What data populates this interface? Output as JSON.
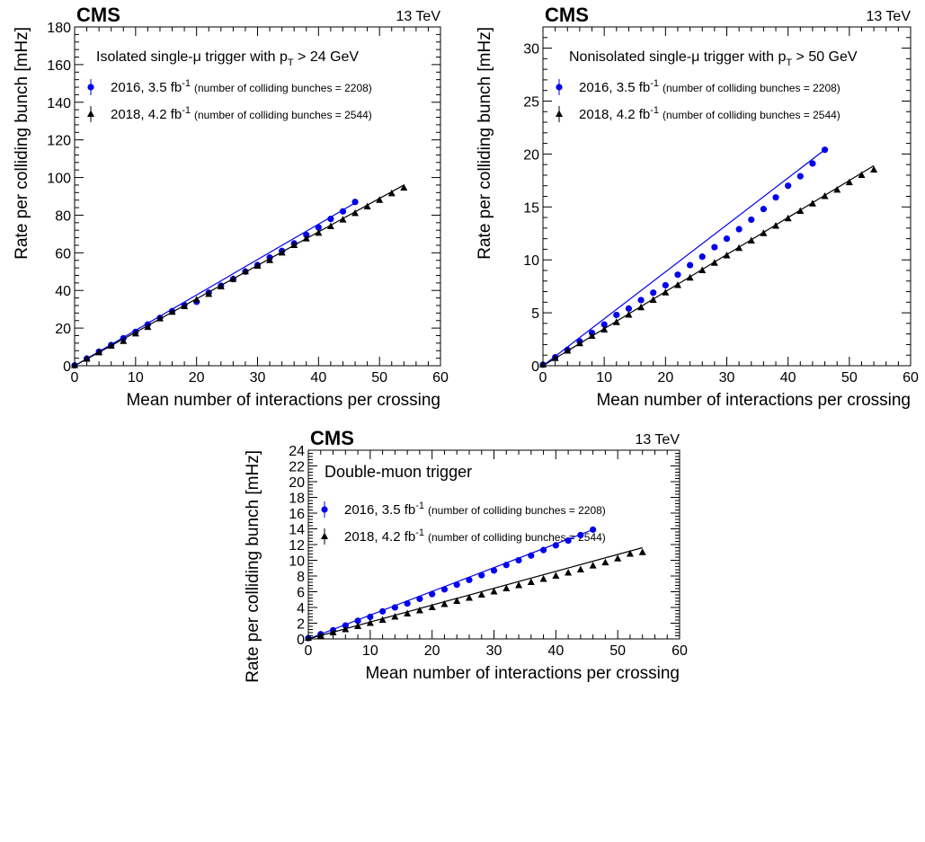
{
  "charts": [
    {
      "cms_label": "CMS",
      "energy_label": "13 TeV",
      "trigger_label": "Isolated single-μ trigger with p_T > 24 GeV",
      "trigger_main": "Isolated single-μ trigger with p",
      "trigger_sub": "T",
      "trigger_tail": " > 24 GeV"
    },
    {
      "cms_label": "CMS",
      "energy_label": "13 TeV",
      "trigger_label": "Nonisolated single-μ trigger with p_T > 50 GeV",
      "trigger_main": "Nonisolated single-μ trigger with p",
      "trigger_sub": "T",
      "trigger_tail": " > 50 GeV"
    },
    {
      "cms_label": "CMS",
      "energy_label": "13 TeV",
      "trigger_label": "Double-muon trigger",
      "trigger_main": "Double-muon trigger",
      "trigger_sub": "",
      "trigger_tail": ""
    }
  ],
  "legend": [
    {
      "label": "2016, 3.5 fb",
      "sup": "-1",
      "note": "(number of colliding bunches = 2208)",
      "color": "#0000ee",
      "marker": "circle"
    },
    {
      "label": "2018, 4.2 fb",
      "sup": "-1",
      "note": "(number of colliding bunches = 2544)",
      "color": "#000000",
      "marker": "triangle"
    }
  ],
  "chart_data": [
    {
      "type": "scatter",
      "title": "Isolated single-μ trigger with p_T > 24 GeV",
      "xlabel": "Mean number of interactions per crossing",
      "ylabel": "Rate per colliding bunch [mHz]",
      "xlim": [
        0,
        60
      ],
      "ylim": [
        0,
        180
      ],
      "xticks": [
        0,
        10,
        20,
        30,
        40,
        50,
        60
      ],
      "yticks": [
        0,
        20,
        40,
        60,
        80,
        100,
        120,
        140,
        160,
        180
      ],
      "legend_position": "top-left",
      "series": [
        {
          "name": "2016, 3.5 fb-1 (number of colliding bunches = 2208)",
          "color": "#0000ee",
          "marker": "circle",
          "x": [
            0,
            2,
            4,
            6,
            8,
            10,
            12,
            14,
            16,
            18,
            20,
            22,
            24,
            26,
            28,
            30,
            32,
            34,
            36,
            38,
            40,
            42,
            44,
            46
          ],
          "y": [
            0.2,
            3.8,
            7.5,
            11,
            14.6,
            18.0,
            21.9,
            25.4,
            29.0,
            32.2,
            34.0,
            38.8,
            42.5,
            46.0,
            50.0,
            53.5,
            57.5,
            61.0,
            65.0,
            69.5,
            73.5,
            78.0,
            82.0,
            87.0
          ],
          "fit": {
            "x0": 0,
            "y0": 0,
            "x1": 46,
            "y1": 86.5
          }
        },
        {
          "name": "2018, 4.2 fb-1 (number of colliding bunches = 2544)",
          "color": "#000000",
          "marker": "triangle",
          "x": [
            0,
            2,
            4,
            6,
            8,
            10,
            12,
            14,
            16,
            18,
            20,
            22,
            24,
            26,
            28,
            30,
            32,
            34,
            36,
            38,
            40,
            42,
            44,
            46,
            48,
            50,
            52,
            54
          ],
          "y": [
            0.2,
            3.6,
            7.0,
            10.5,
            13.0,
            17.0,
            20.5,
            25.0,
            28.5,
            31.5,
            35.0,
            38.0,
            42.0,
            46.0,
            50.0,
            53.0,
            56.0,
            60.0,
            64.0,
            67.5,
            70.5,
            74.0,
            77.5,
            81.0,
            84.5,
            88.0,
            91.5,
            94.5
          ],
          "fit": {
            "x0": 0,
            "y0": 0,
            "x1": 54,
            "y1": 96
          }
        }
      ]
    },
    {
      "type": "scatter",
      "title": "Nonisolated single-μ trigger with p_T > 50 GeV",
      "xlabel": "Mean number of interactions per crossing",
      "ylabel": "Rate per colliding bunch [mHz]",
      "xlim": [
        0,
        60
      ],
      "ylim": [
        0,
        32
      ],
      "xticks": [
        0,
        10,
        20,
        30,
        40,
        50,
        60
      ],
      "yticks": [
        0,
        5,
        10,
        15,
        20,
        25,
        30
      ],
      "legend_position": "top-left",
      "series": [
        {
          "name": "2016, 3.5 fb-1 (number of colliding bunches = 2208)",
          "color": "#0000ee",
          "marker": "circle",
          "x": [
            0,
            2,
            4,
            6,
            8,
            10,
            12,
            14,
            16,
            18,
            20,
            22,
            24,
            26,
            28,
            30,
            32,
            34,
            36,
            38,
            40,
            42,
            44,
            46
          ],
          "y": [
            0.1,
            0.8,
            1.5,
            2.3,
            3.1,
            3.9,
            4.8,
            5.4,
            6.2,
            6.9,
            7.6,
            8.6,
            9.5,
            10.3,
            11.2,
            12.0,
            12.9,
            13.8,
            14.8,
            15.9,
            17.0,
            17.9,
            19.1,
            20.4
          ],
          "fit": {
            "x0": 0,
            "y0": 0,
            "x1": 46,
            "y1": 20.4
          }
        },
        {
          "name": "2018, 4.2 fb-1 (number of colliding bunches = 2544)",
          "color": "#000000",
          "marker": "triangle",
          "x": [
            0,
            2,
            4,
            6,
            8,
            10,
            12,
            14,
            16,
            18,
            20,
            22,
            24,
            26,
            28,
            30,
            32,
            34,
            36,
            38,
            40,
            42,
            44,
            46,
            48,
            50,
            52,
            54
          ],
          "y": [
            0.1,
            0.7,
            1.4,
            2.1,
            2.8,
            3.4,
            4.1,
            4.8,
            5.5,
            6.2,
            6.9,
            7.6,
            8.3,
            9.0,
            9.7,
            10.4,
            11.1,
            11.8,
            12.5,
            13.2,
            13.9,
            14.6,
            15.3,
            16.0,
            16.6,
            17.3,
            18.0,
            18.5
          ],
          "fit": {
            "x0": 0,
            "y0": 0,
            "x1": 54,
            "y1": 18.9
          }
        }
      ]
    },
    {
      "type": "scatter",
      "title": "Double-muon trigger",
      "xlabel": "Mean number of interactions per crossing",
      "ylabel": "Rate per colliding bunch [mHz]",
      "xlim": [
        0,
        60
      ],
      "ylim": [
        0,
        24
      ],
      "xticks": [
        0,
        10,
        20,
        30,
        40,
        50,
        60
      ],
      "yticks": [
        0,
        2,
        4,
        6,
        8,
        10,
        12,
        14,
        16,
        18,
        20,
        22,
        24
      ],
      "legend_position": "top-left",
      "series": [
        {
          "name": "2016, 3.5 fb-1 (number of colliding bunches = 2208)",
          "color": "#0000ee",
          "marker": "circle",
          "x": [
            0,
            2,
            4,
            6,
            8,
            10,
            12,
            14,
            16,
            18,
            20,
            22,
            24,
            26,
            28,
            30,
            32,
            34,
            36,
            38,
            40,
            42,
            44,
            46
          ],
          "y": [
            0.1,
            0.6,
            1.1,
            1.7,
            2.3,
            2.8,
            3.5,
            4.0,
            4.5,
            5.1,
            5.7,
            6.3,
            6.9,
            7.5,
            8.1,
            8.7,
            9.4,
            10.0,
            10.6,
            11.3,
            11.9,
            12.5,
            13.2,
            13.9
          ],
          "fit": {
            "x0": 0,
            "y0": 0,
            "x1": 46,
            "y1": 13.9
          }
        },
        {
          "name": "2018, 4.2 fb-1 (number of colliding bunches = 2544)",
          "color": "#000000",
          "marker": "triangle",
          "x": [
            0,
            2,
            4,
            6,
            8,
            10,
            12,
            14,
            16,
            18,
            20,
            22,
            24,
            26,
            28,
            30,
            32,
            34,
            36,
            38,
            40,
            42,
            44,
            46,
            48,
            50,
            52,
            54
          ],
          "y": [
            0.1,
            0.4,
            0.8,
            1.2,
            1.6,
            2.0,
            2.4,
            2.8,
            3.2,
            3.6,
            4.0,
            4.4,
            4.8,
            5.2,
            5.6,
            6.0,
            6.4,
            6.8,
            7.2,
            7.6,
            8.0,
            8.4,
            8.8,
            9.3,
            9.7,
            10.2,
            10.8,
            11.0
          ],
          "fit": {
            "x0": 0,
            "y0": 0,
            "x1": 54,
            "y1": 11.6
          }
        }
      ]
    }
  ]
}
